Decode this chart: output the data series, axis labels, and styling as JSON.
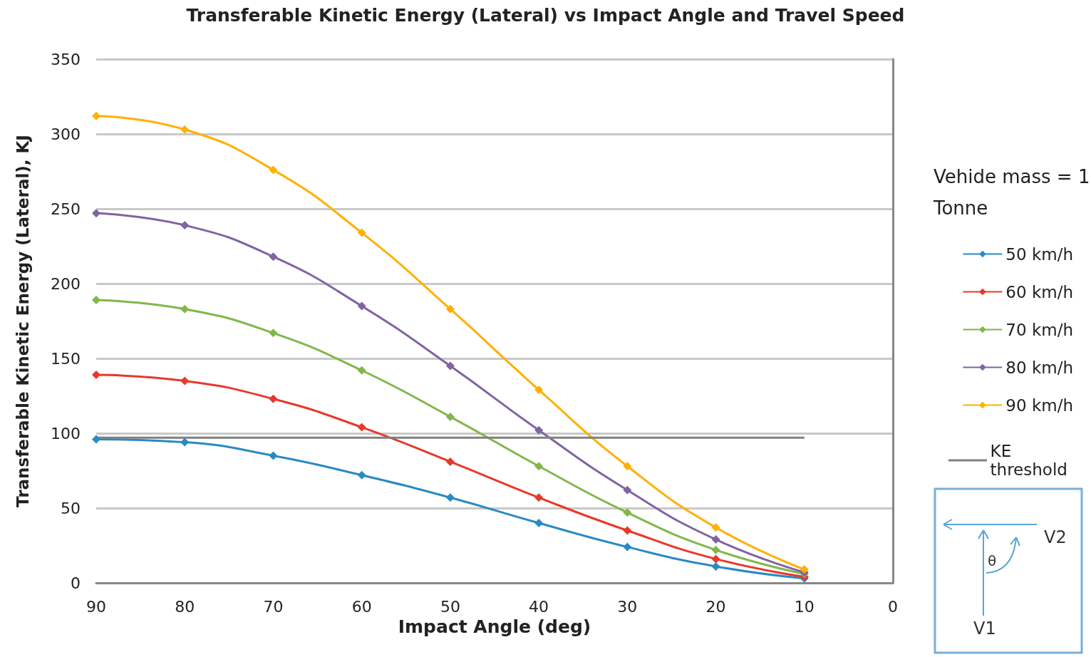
{
  "chart_data": {
    "type": "line",
    "title": "Transferable Kinetic Energy (Lateral) vs Impact Angle and Travel Speed",
    "xlabel": "Impact Angle (deg)",
    "ylabel": "Transferable Kinetic Energy (Lateral), KJ",
    "x": [
      90,
      80,
      70,
      60,
      50,
      40,
      30,
      20,
      10
    ],
    "series": [
      {
        "name": "50 km/h",
        "color": "#2a8ac4",
        "values": [
          96,
          94,
          85,
          72,
          57,
          40,
          24,
          11,
          3
        ]
      },
      {
        "name": "60 km/h",
        "color": "#e8382a",
        "values": [
          139,
          135,
          123,
          104,
          81,
          57,
          35,
          16,
          4
        ]
      },
      {
        "name": "70 km/h",
        "color": "#82b74b",
        "values": [
          189,
          183,
          167,
          142,
          111,
          78,
          47,
          22,
          6
        ]
      },
      {
        "name": "80 km/h",
        "color": "#8064a2",
        "values": [
          247,
          239,
          218,
          185,
          145,
          102,
          62,
          29,
          7
        ]
      },
      {
        "name": "90 km/h",
        "color": "#ffb000",
        "values": [
          312,
          303,
          276,
          234,
          183,
          129,
          78,
          37,
          9
        ]
      }
    ],
    "ref_lines": [
      {
        "axis": "y",
        "value": 97,
        "label": "KE threshold",
        "color": "#808080"
      }
    ],
    "xlim": [
      90,
      0
    ],
    "xticks": [
      90,
      80,
      70,
      60,
      50,
      40,
      30,
      20,
      10,
      0
    ],
    "ylim": [
      0,
      350
    ],
    "yticks": [
      0,
      50,
      100,
      150,
      200,
      250,
      300,
      350
    ],
    "grid": "y",
    "legend": "right",
    "marker": "diamond",
    "annotations": [
      "Vehide mass = 1 Tonne",
      "V2",
      "θ",
      "V1"
    ]
  }
}
